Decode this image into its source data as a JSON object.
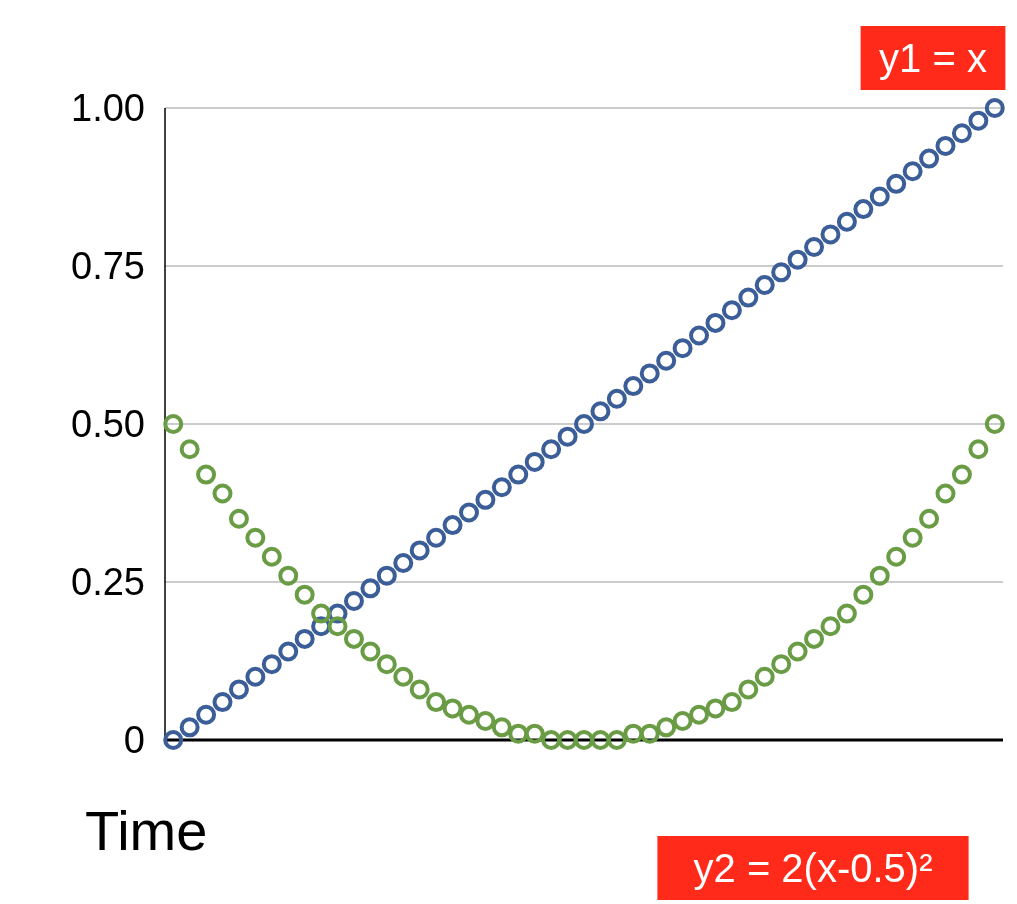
{
  "chart_data": {
    "type": "scatter",
    "xlabel": "Time",
    "categories": [
      null,
      null,
      null,
      null,
      null,
      null,
      null,
      null,
      null,
      null,
      null,
      null,
      null,
      null,
      null,
      null,
      null,
      null,
      null,
      null,
      null,
      null,
      null,
      null,
      null,
      null,
      null,
      null,
      null,
      null,
      null,
      null,
      null,
      null,
      null,
      null,
      null,
      null,
      null,
      null,
      null,
      null,
      null,
      null,
      null,
      null,
      null,
      null,
      null,
      null,
      null
    ],
    "ylim": [
      0,
      1
    ],
    "yticks": [
      0,
      0.25,
      {
        "value": 0.5,
        "label": "0.50"
      },
      0.75,
      {
        "value": 1,
        "label": "1.00"
      }
    ],
    "grid": "y",
    "marker": "circle",
    "series": [
      {
        "name": "y1 = x",
        "color": "#3b5e99",
        "values": [
          0,
          0.02,
          0.04,
          0.06,
          0.08,
          0.1,
          0.12,
          0.14,
          0.16,
          0.18,
          0.2,
          0.22,
          0.24,
          0.26,
          0.28,
          0.3,
          0.32,
          0.34,
          0.36,
          0.38,
          0.4,
          0.42,
          0.44,
          0.46,
          0.48,
          0.5,
          0.52,
          0.54,
          0.56,
          0.58,
          0.6,
          0.62,
          0.64,
          0.66,
          0.68,
          0.7,
          0.72,
          0.74,
          0.76,
          0.78,
          0.8,
          0.82,
          0.84,
          0.86,
          0.88,
          0.9,
          0.92,
          0.94,
          0.96,
          0.98,
          1
        ]
      },
      {
        "name": "y2 = 2(x-0.5)²",
        "color": "#6a9c45",
        "values": [
          0.5,
          0.46,
          0.42,
          0.39,
          0.35,
          0.32,
          0.29,
          0.26,
          0.23,
          0.2,
          0.18,
          0.16,
          0.14,
          0.12,
          0.1,
          0.08,
          0.06,
          0.05,
          0.04,
          0.03,
          0.02,
          0.01,
          0.01,
          0,
          0,
          0,
          0,
          0,
          0.01,
          0.01,
          0.02,
          0.03,
          0.04,
          0.05,
          0.06,
          0.08,
          0.1,
          0.12,
          0.14,
          0.16,
          0.18,
          0.2,
          0.23,
          0.26,
          0.29,
          0.32,
          0.35,
          0.39,
          0.42,
          0.46,
          0.5
        ]
      }
    ]
  }
}
